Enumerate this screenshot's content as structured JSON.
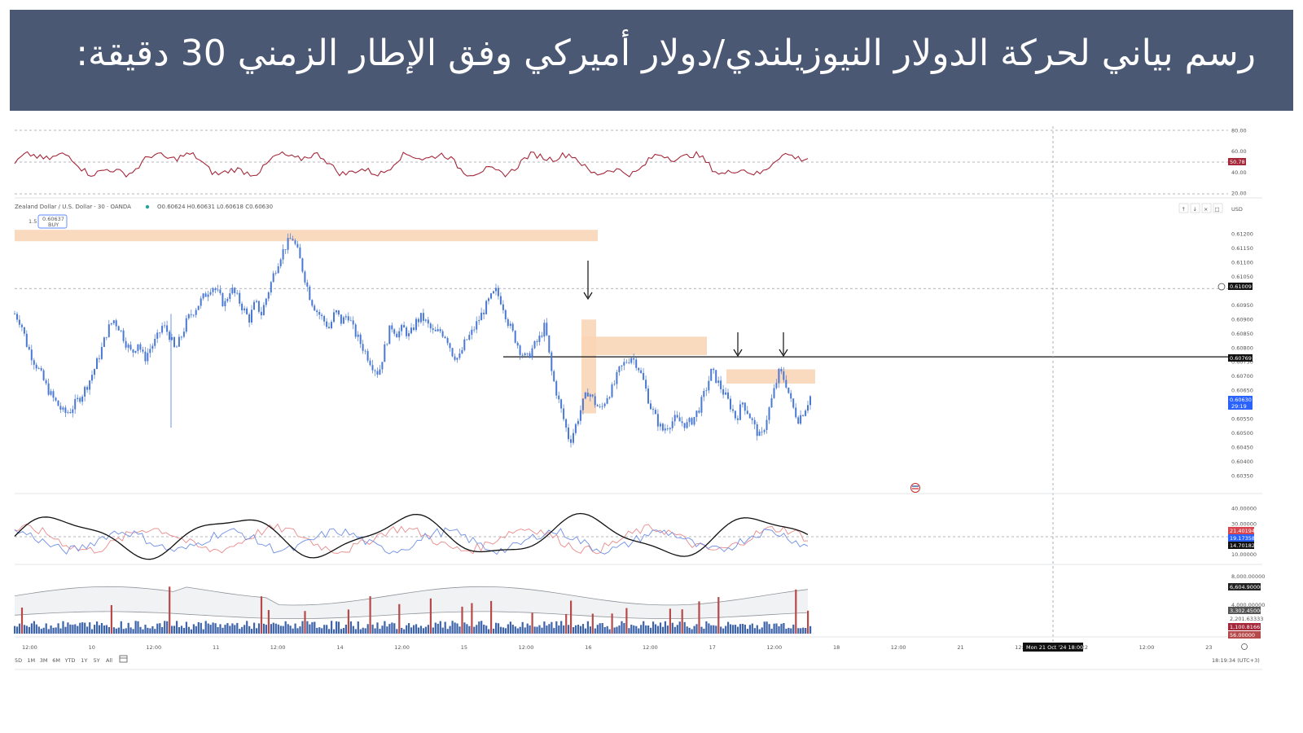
{
  "header": {
    "title": "رسم بياني لحركة الدولار النيوزيلندي/دولار أميركي وفق الإطار الزمني 30 دقيقة:"
  },
  "legend": {
    "symbol": "Zealand Dollar / U.S. Dollar · 30 · OANDA",
    "ohlc": "O0.60624 H0.60631 L0.60618 C0.60630",
    "buy_price": "0.60637",
    "buy_label": "BUY",
    "qty": "1.5"
  },
  "currency": "USD",
  "colors": {
    "banner": "#4b5873",
    "candle": "#4a78d4",
    "zone": "#f9d4b4",
    "rsi": "#a4283a",
    "vol_up": "#3d63a8",
    "vol_down": "#b64a4a"
  },
  "price_tags": {
    "rsi_value": "50.78",
    "level_upper": "0.61009",
    "level_line": "0.60769",
    "current": "0.60630",
    "countdown": "29:19",
    "ind_1": "21.40194",
    "ind_2": "19.17358",
    "ind_3": "14.70182",
    "vol_1": "6,604.90000",
    "vol_2": "3,302.45000",
    "vol_3": "2,201.63333",
    "vol_4": "1,100.81667",
    "vol_5": "56.00000"
  },
  "cursor_label": "Mon 21 Oct '24  18:00",
  "timeframes": [
    "5D",
    "1M",
    "3M",
    "6M",
    "YTD",
    "1Y",
    "5Y",
    "All"
  ],
  "clock": "18:19:34 (UTC+3)",
  "chart_data": {
    "type": "candlestick",
    "instrument": "Zealand Dollar / U.S. Dollar · 30 · OANDA",
    "price_axis": {
      "ticks": [
        "0.61200",
        "0.61150",
        "0.61100",
        "0.61050",
        "0.60950",
        "0.60900",
        "0.60850",
        "0.60800",
        "0.60750",
        "0.60700",
        "0.60650",
        "0.60550",
        "0.60500",
        "0.60450",
        "0.60400",
        "0.60350"
      ],
      "range": [
        0.6032,
        0.6125
      ]
    },
    "time_axis": {
      "ticks": [
        "12:00",
        "10",
        "12:00",
        "11",
        "12:00",
        "14",
        "12:00",
        "15",
        "12:00",
        "16",
        "12:00",
        "17",
        "12:00",
        "18",
        "12:00",
        "21",
        "12:00",
        "22",
        "12:00",
        "23"
      ]
    },
    "rsi_axis": {
      "ticks": [
        "80.00",
        "60.00",
        "40.00",
        "20.00"
      ],
      "range": [
        18,
        82
      ]
    },
    "dmi_axis": {
      "ticks": [
        "40.00000",
        "30.00000",
        "10.00000"
      ],
      "range": [
        8,
        45
      ]
    },
    "volume_axis": {
      "ticks": [
        "8,000.00000",
        "4,000.00000"
      ],
      "range": [
        0,
        8000
      ]
    },
    "levels": {
      "resistance_line": 0.60769,
      "dotted_level": 0.61009
    },
    "zones": [
      {
        "from": "start",
        "to": "16 early",
        "low": 0.61175,
        "high": 0.61215
      },
      {
        "from": "16 00:00",
        "to": "17 00:00",
        "low": 0.60775,
        "high": 0.6084
      },
      {
        "from": "17 12:00",
        "to": "18 00:00",
        "low": 0.60675,
        "high": 0.60725
      }
    ],
    "markers": [
      "down-arrow",
      "down-arrow",
      "down-arrow"
    ],
    "price_path": [
      0.6092,
      0.6089,
      0.6081,
      0.6076,
      0.6072,
      0.6067,
      0.6063,
      0.606,
      0.6057,
      0.6058,
      0.6061,
      0.6064,
      0.6068,
      0.6073,
      0.6079,
      0.6086,
      0.609,
      0.6087,
      0.6082,
      0.6078,
      0.6082,
      0.6076,
      0.608,
      0.6083,
      0.6088,
      0.6085,
      0.6079,
      0.6084,
      0.609,
      0.6093,
      0.6096,
      0.6099,
      0.6102,
      0.6099,
      0.6095,
      0.6101,
      0.6098,
      0.6094,
      0.609,
      0.6096,
      0.6092,
      0.6099,
      0.6106,
      0.6112,
      0.6116,
      0.6119,
      0.6113,
      0.6105,
      0.6097,
      0.6093,
      0.609,
      0.6087,
      0.6093,
      0.6089,
      0.6092,
      0.6086,
      0.6082,
      0.6078,
      0.6074,
      0.6071,
      0.608,
      0.6088,
      0.6085,
      0.6087,
      0.6084,
      0.6089,
      0.6091,
      0.6088,
      0.6085,
      0.6086,
      0.6084,
      0.6078,
      0.6076,
      0.6082,
      0.6085,
      0.6089,
      0.6093,
      0.6097,
      0.61,
      0.6096,
      0.6089,
      0.6084,
      0.6079,
      0.6076,
      0.608,
      0.6083,
      0.6088,
      0.6072,
      0.6063,
      0.6055,
      0.6047,
      0.6053,
      0.606,
      0.6065,
      0.6061,
      0.6058,
      0.6063,
      0.6066,
      0.6072,
      0.6075,
      0.6077,
      0.6074,
      0.6068,
      0.606,
      0.6055,
      0.6051,
      0.6053,
      0.6055,
      0.6054,
      0.6053,
      0.6055,
      0.6059,
      0.6065,
      0.6072,
      0.6068,
      0.6064,
      0.606,
      0.6055,
      0.6061,
      0.6057,
      0.6052,
      0.6048,
      0.6056,
      0.6064,
      0.6072,
      0.6068,
      0.606,
      0.6055,
      0.6058,
      0.6063
    ]
  }
}
